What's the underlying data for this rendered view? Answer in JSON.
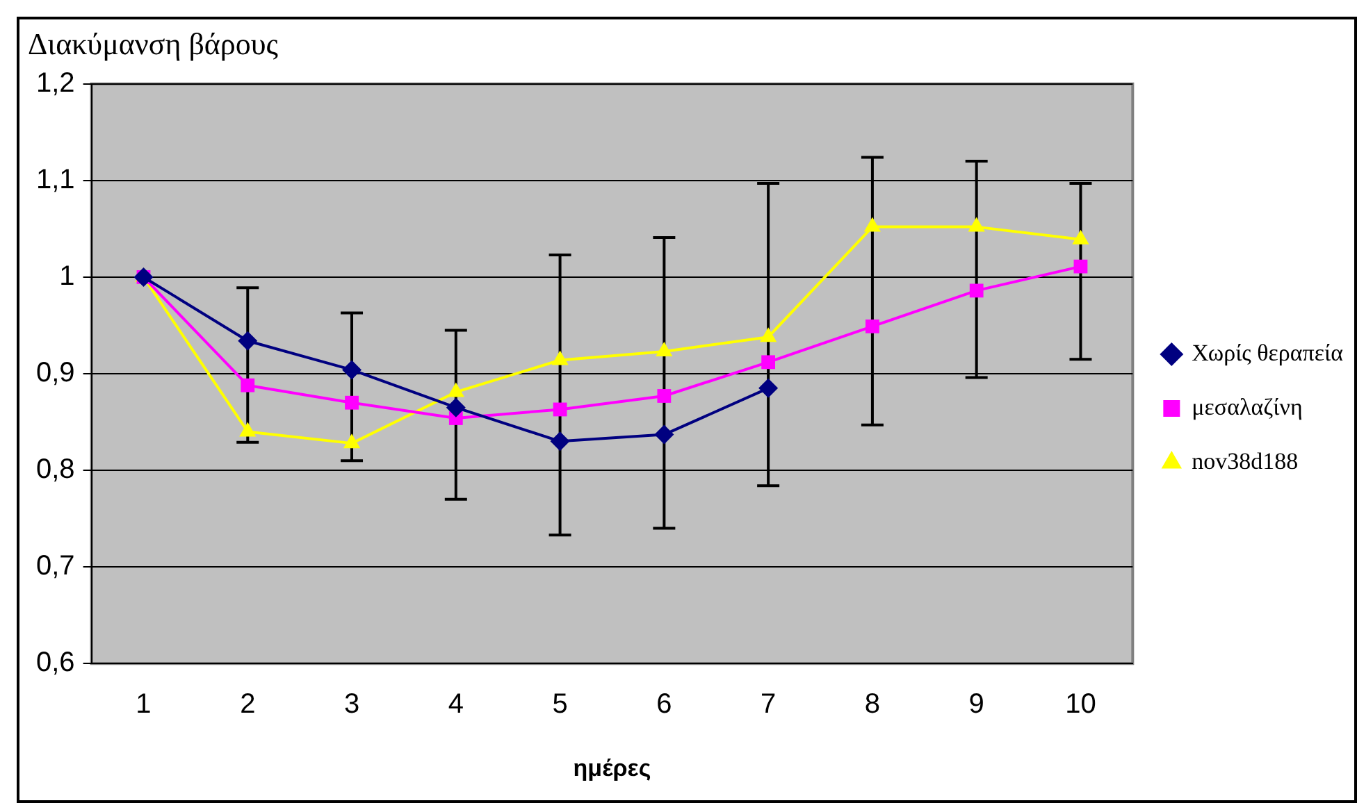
{
  "chart_data": {
    "type": "line",
    "title": "Διακύμανση βάρους",
    "xlabel": "ημέρες",
    "categories": [
      "1",
      "2",
      "3",
      "4",
      "5",
      "6",
      "7",
      "8",
      "9",
      "10"
    ],
    "series": [
      {
        "name": "Χωρίς θεραπεία",
        "color": "#000080",
        "marker": "diamond",
        "values": [
          1,
          0.934,
          0.904,
          0.865,
          0.83,
          0.837,
          0.885,
          null,
          null,
          null
        ],
        "errors": [
          null,
          [
            0.829,
            0.989
          ],
          [
            0.81,
            0.963
          ],
          [
            0.77,
            0.945
          ],
          [
            0.733,
            1.023
          ],
          [
            0.74,
            1.041
          ],
          [
            0.784,
            1.097
          ],
          null,
          null,
          null
        ]
      },
      {
        "name": "μεσαλαζίνη",
        "color": "#ff00ff",
        "marker": "square",
        "values": [
          1,
          0.888,
          0.87,
          0.854,
          0.863,
          0.877,
          0.912,
          0.949,
          0.986,
          1.011
        ],
        "errors": [
          null,
          null,
          null,
          null,
          null,
          null,
          null,
          [
            0.847,
            1.124
          ],
          [
            0.896,
            1.12
          ],
          [
            0.915,
            1.097
          ]
        ]
      },
      {
        "name": "nov38d188",
        "color": "#ffff00",
        "marker": "triangle",
        "values": [
          1,
          0.84,
          0.828,
          0.881,
          0.914,
          0.923,
          0.938,
          1.052,
          1.052,
          1.039
        ]
      }
    ],
    "ylim": [
      0.6,
      1.2
    ],
    "yticks": [
      {
        "value": 0.6,
        "label": "0,6"
      },
      {
        "value": 0.7,
        "label": "0,7"
      },
      {
        "value": 0.8,
        "label": "0,8"
      },
      {
        "value": 0.9,
        "label": "0,9"
      },
      {
        "value": 1,
        "label": "1"
      },
      {
        "value": 1.1,
        "label": "1,1"
      },
      {
        "value": 1.2,
        "label": "1,2"
      }
    ],
    "grid": "y",
    "legend": "right"
  }
}
